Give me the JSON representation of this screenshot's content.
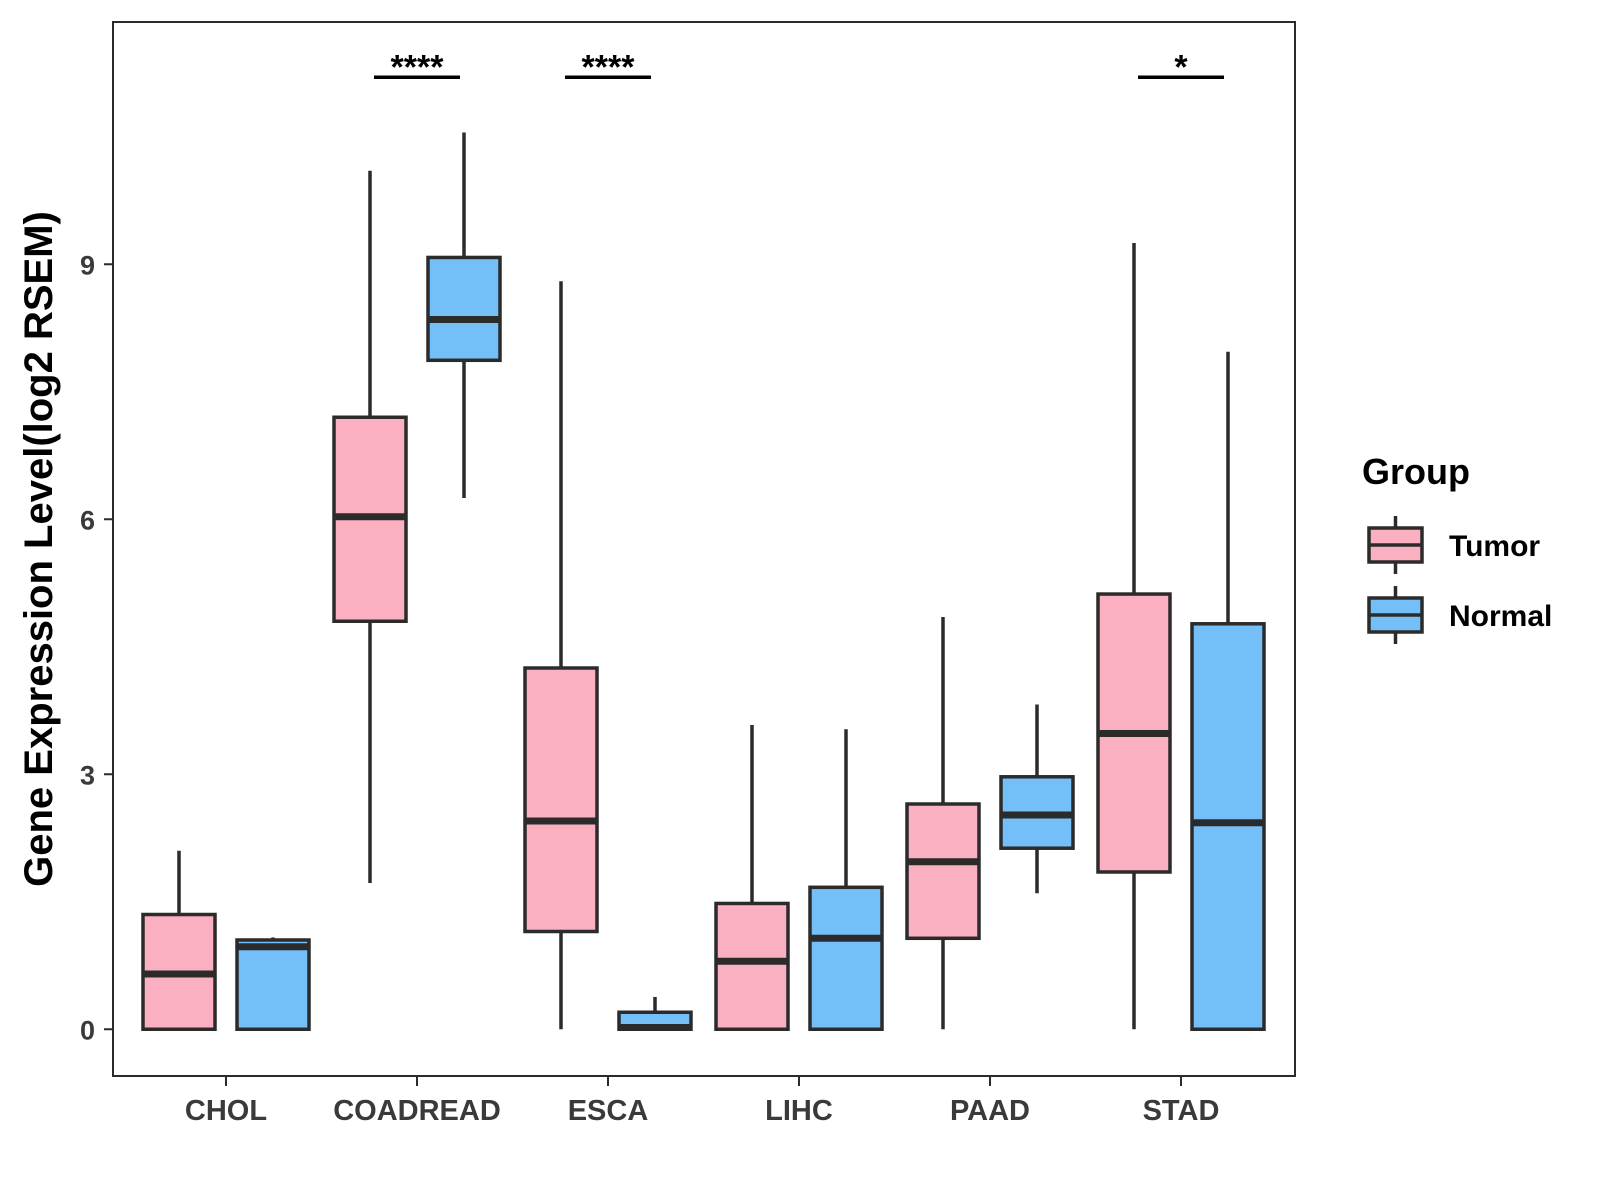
{
  "chart_data": {
    "type": "boxplot",
    "title": "",
    "xlabel": "",
    "ylabel": "Gene Expression Level(log2 RSEM)",
    "ylim": [
      -0.55,
      11.85
    ],
    "yticks": [
      0,
      3,
      6,
      9
    ],
    "grid": false,
    "categories": [
      "CHOL",
      "COADREAD",
      "ESCA",
      "LIHC",
      "PAAD",
      "STAD"
    ],
    "series": [
      {
        "name": "Tumor",
        "color": "#FBB0C2",
        "boxes": [
          {
            "min": 0.0,
            "q1": 0.0,
            "median": 0.65,
            "q3": 1.35,
            "max": 2.1
          },
          {
            "min": 1.72,
            "q1": 4.8,
            "median": 6.03,
            "q3": 7.2,
            "max": 10.1
          },
          {
            "min": 0.0,
            "q1": 1.15,
            "median": 2.45,
            "q3": 4.25,
            "max": 8.8
          },
          {
            "min": 0.0,
            "q1": 0.0,
            "median": 0.8,
            "q3": 1.48,
            "max": 3.58
          },
          {
            "min": 0.0,
            "q1": 1.07,
            "median": 1.97,
            "q3": 2.65,
            "max": 4.85
          },
          {
            "min": 0.0,
            "q1": 1.85,
            "median": 3.48,
            "q3": 5.12,
            "max": 9.25
          }
        ]
      },
      {
        "name": "Normal",
        "color": "#74BFF8",
        "boxes": [
          {
            "min": 0.0,
            "q1": 0.0,
            "median": 0.97,
            "q3": 1.05,
            "max": 1.08
          },
          {
            "min": 6.25,
            "q1": 7.87,
            "median": 8.35,
            "q3": 9.08,
            "max": 10.55
          },
          {
            "min": 0.0,
            "q1": 0.0,
            "median": 0.02,
            "q3": 0.2,
            "max": 0.38
          },
          {
            "min": 0.0,
            "q1": 0.0,
            "median": 1.07,
            "q3": 1.67,
            "max": 3.53
          },
          {
            "min": 1.6,
            "q1": 2.13,
            "median": 2.52,
            "q3": 2.97,
            "max": 3.82
          },
          {
            "min": 0.0,
            "q1": 0.0,
            "median": 2.43,
            "q3": 4.77,
            "max": 7.97
          }
        ]
      }
    ],
    "significance": [
      {
        "category": "COADREAD",
        "label": "****",
        "y": 11.2
      },
      {
        "category": "ESCA",
        "label": "****",
        "y": 11.2
      },
      {
        "category": "STAD",
        "label": "*",
        "y": 11.2
      }
    ],
    "legend": {
      "title": "Group",
      "placement": "right",
      "entries": [
        "Tumor",
        "Normal"
      ]
    }
  }
}
